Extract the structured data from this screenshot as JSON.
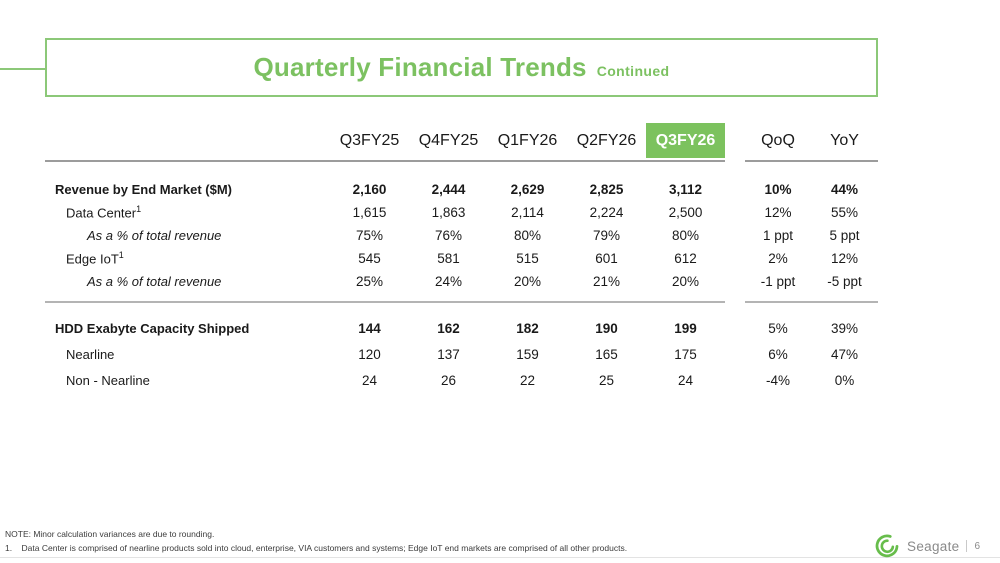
{
  "title": {
    "main": "Quarterly Financial Trends",
    "suffix": "Continued"
  },
  "table": {
    "columns": [
      "Q3FY25",
      "Q4FY25",
      "Q1FY26",
      "Q2FY26",
      "Q3FY26",
      "QoQ",
      "YoY"
    ],
    "highlight_index": 4,
    "sections": [
      {
        "rows": [
          {
            "label": "Revenue by End Market ($M)",
            "style": "bold",
            "bold_values": true,
            "bold_changes": true,
            "values": [
              "2,160",
              "2,444",
              "2,629",
              "2,825",
              "3,112"
            ],
            "changes": [
              "10%",
              "44%"
            ]
          },
          {
            "label": "Data Center",
            "sup": "1",
            "style": "normal",
            "bold_values": false,
            "bold_changes": false,
            "values": [
              "1,615",
              "1,863",
              "2,114",
              "2,224",
              "2,500"
            ],
            "changes": [
              "12%",
              "55%"
            ]
          },
          {
            "label": "As a % of total revenue",
            "style": "italic",
            "bold_values": false,
            "bold_changes": false,
            "values": [
              "75%",
              "76%",
              "80%",
              "79%",
              "80%"
            ],
            "changes": [
              "1 ppt",
              "5 ppt"
            ]
          },
          {
            "label": "Edge IoT",
            "sup": "1",
            "style": "normal",
            "bold_values": false,
            "bold_changes": false,
            "values": [
              "545",
              "581",
              "515",
              "601",
              "612"
            ],
            "changes": [
              "2%",
              "12%"
            ]
          },
          {
            "label": "As a % of total revenue",
            "style": "italic",
            "bold_values": false,
            "bold_changes": false,
            "values": [
              "25%",
              "24%",
              "20%",
              "21%",
              "20%"
            ],
            "changes": [
              "-1 ppt",
              "-5 ppt"
            ]
          }
        ]
      },
      {
        "rows": [
          {
            "label": "HDD Exabyte Capacity Shipped",
            "style": "bold",
            "bold_values": true,
            "bold_changes": false,
            "values": [
              "144",
              "162",
              "182",
              "190",
              "199"
            ],
            "changes": [
              "5%",
              "39%"
            ]
          },
          {
            "label": "Nearline",
            "style": "normal",
            "bold_values": false,
            "bold_changes": false,
            "values": [
              "120",
              "137",
              "159",
              "165",
              "175"
            ],
            "changes": [
              "6%",
              "47%"
            ]
          },
          {
            "label": "Non - Nearline",
            "style": "normal",
            "bold_values": false,
            "bold_changes": false,
            "values": [
              "24",
              "26",
              "22",
              "25",
              "24"
            ],
            "changes": [
              "-4%",
              "0%"
            ]
          }
        ]
      }
    ]
  },
  "footer": {
    "note1": "NOTE: Minor calculation variances are due to rounding.",
    "note2": "1.    Data Center is comprised of nearline products sold into cloud, enterprise, VIA customers and systems; Edge IoT end markets are comprised of all other products.",
    "brand": "Seagate",
    "page": "6"
  },
  "colors": {
    "accent_green": "#7cc161",
    "border_green": "#8cc878",
    "highlight_green": "#7cc25e",
    "logo_green": "#67bd4b",
    "rule_gray": "#9c9c9c"
  }
}
